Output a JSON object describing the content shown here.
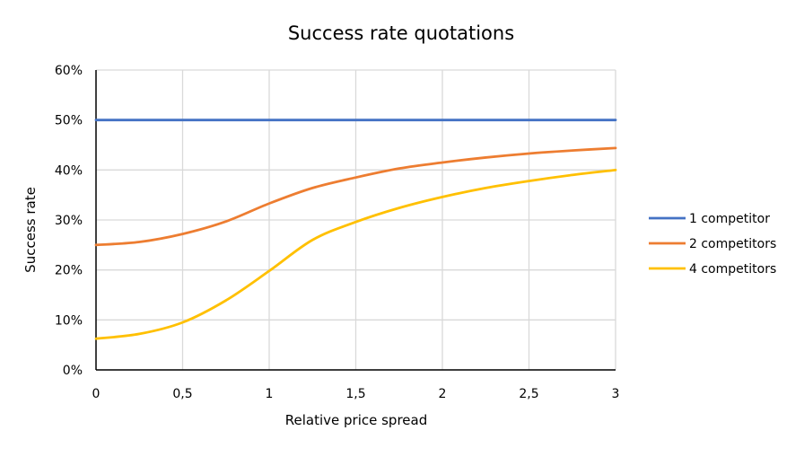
{
  "chart_data": {
    "type": "line",
    "title": "Success rate quotations",
    "xlabel": "Relative price spread",
    "ylabel": "Success rate",
    "xlim": [
      0,
      3
    ],
    "ylim": [
      0,
      0.6
    ],
    "x_ticks": [
      0,
      0.5,
      1,
      1.5,
      2,
      2.5,
      3
    ],
    "x_tick_labels": [
      "0",
      "0,5",
      "1",
      "1,5",
      "2",
      "2,5",
      "3"
    ],
    "y_ticks": [
      0,
      0.1,
      0.2,
      0.3,
      0.4,
      0.5,
      0.6
    ],
    "y_tick_labels": [
      "0%",
      "10%",
      "20%",
      "30%",
      "40%",
      "50%",
      "60%"
    ],
    "grid": true,
    "legend_position": "right",
    "x": [
      0,
      0.25,
      0.5,
      0.75,
      1,
      1.25,
      1.5,
      1.75,
      2,
      2.25,
      2.5,
      2.75,
      3
    ],
    "series": [
      {
        "name": "1 competitor",
        "color": "#4472C4",
        "values": [
          0.5,
          0.5,
          0.5,
          0.5,
          0.5,
          0.5,
          0.5,
          0.5,
          0.5,
          0.5,
          0.5,
          0.5,
          0.5
        ]
      },
      {
        "name": "2 competitors",
        "color": "#ED7D31",
        "values": [
          0.25,
          0.256,
          0.272,
          0.297,
          0.333,
          0.364,
          0.385,
          0.403,
          0.415,
          0.425,
          0.433,
          0.439,
          0.444
        ]
      },
      {
        "name": "4 competitors",
        "color": "#FFC000",
        "values": [
          0.0625,
          0.072,
          0.095,
          0.139,
          0.198,
          0.26,
          0.296,
          0.324,
          0.346,
          0.364,
          0.378,
          0.39,
          0.4
        ]
      }
    ]
  }
}
